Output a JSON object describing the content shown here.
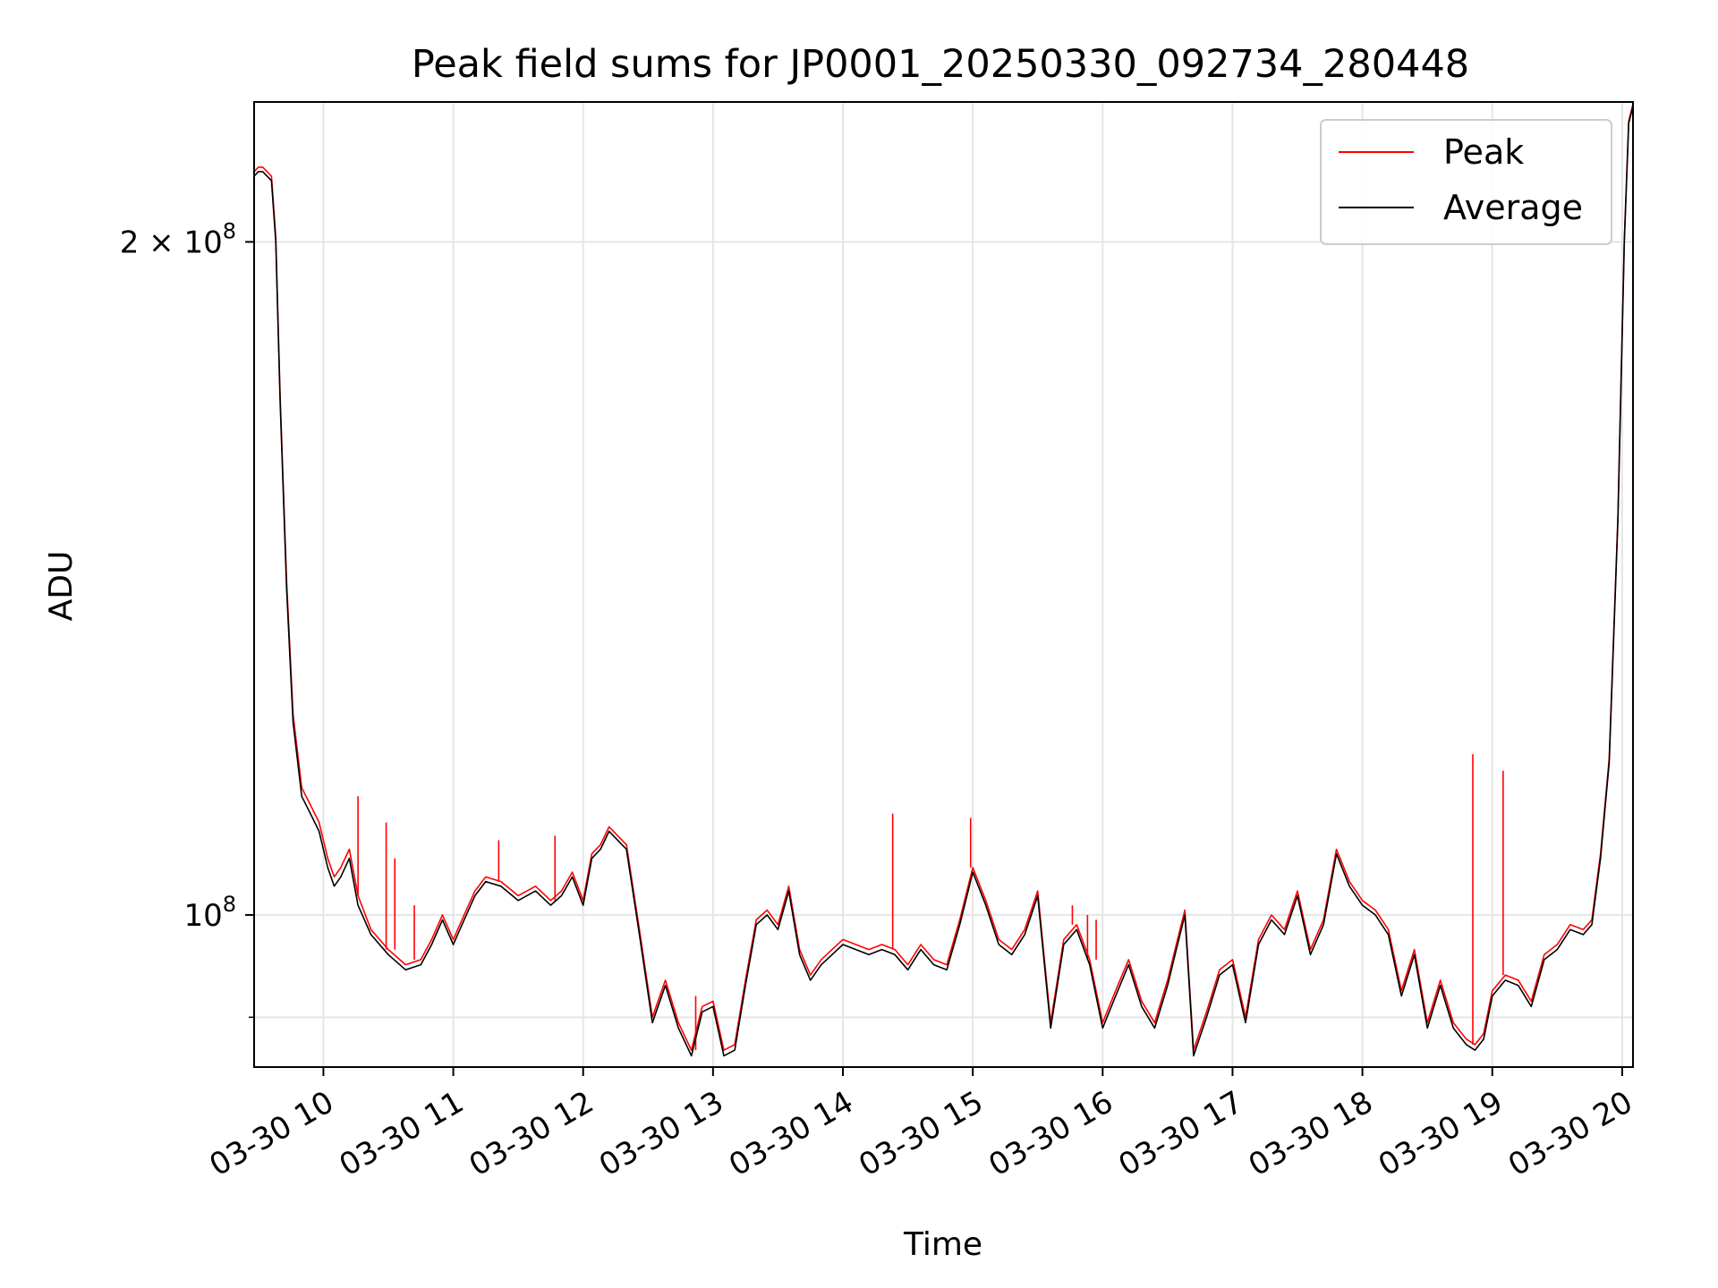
{
  "chart_data": {
    "type": "line",
    "title": "Peak field sums for JP0001_20250330_092734_280448",
    "xlabel": "Time",
    "ylabel": "ADU",
    "x_type": "datetime",
    "xlim": [
      "2025-03-30T09:28:00",
      "2025-03-30T20:05:00"
    ],
    "ylim": [
      85500000,
      231000000
    ],
    "y_scale": "log",
    "grid": true,
    "legend_position": "top-right",
    "x_ticks": [
      {
        "value": "2025-03-30T10:00:00",
        "label": "03-30 10"
      },
      {
        "value": "2025-03-30T11:00:00",
        "label": "03-30 11"
      },
      {
        "value": "2025-03-30T12:00:00",
        "label": "03-30 12"
      },
      {
        "value": "2025-03-30T13:00:00",
        "label": "03-30 13"
      },
      {
        "value": "2025-03-30T14:00:00",
        "label": "03-30 14"
      },
      {
        "value": "2025-03-30T15:00:00",
        "label": "03-30 15"
      },
      {
        "value": "2025-03-30T16:00:00",
        "label": "03-30 16"
      },
      {
        "value": "2025-03-30T17:00:00",
        "label": "03-30 17"
      },
      {
        "value": "2025-03-30T18:00:00",
        "label": "03-30 18"
      },
      {
        "value": "2025-03-30T19:00:00",
        "label": "03-30 19"
      },
      {
        "value": "2025-03-30T20:00:00",
        "label": "03-30 20"
      }
    ],
    "y_ticks": [
      {
        "value": 100000000,
        "base": "10",
        "exp": "8",
        "coef": ""
      },
      {
        "value": 200000000,
        "base": "10",
        "exp": "8",
        "coef": "2 × "
      }
    ],
    "y_minor_gridlines": [
      90000000
    ],
    "series": [
      {
        "name": "Average",
        "color": "#000000",
        "x": [
          "2025-03-30T09:28:00",
          "2025-03-30T09:30:00",
          "2025-03-30T09:32:00",
          "2025-03-30T09:36:00",
          "2025-03-30T09:38:00",
          "2025-03-30T09:40:00",
          "2025-03-30T09:43:00",
          "2025-03-30T09:46:00",
          "2025-03-30T09:50:00",
          "2025-03-30T09:54:00",
          "2025-03-30T09:58:00",
          "2025-03-30T10:02:00",
          "2025-03-30T10:05:00",
          "2025-03-30T10:08:00",
          "2025-03-30T10:12:00",
          "2025-03-30T10:16:00",
          "2025-03-30T10:22:00",
          "2025-03-30T10:30:00",
          "2025-03-30T10:38:00",
          "2025-03-30T10:45:00",
          "2025-03-30T10:50:00",
          "2025-03-30T10:55:00",
          "2025-03-30T11:00:00",
          "2025-03-30T11:05:00",
          "2025-03-30T11:10:00",
          "2025-03-30T11:15:00",
          "2025-03-30T11:22:00",
          "2025-03-30T11:30:00",
          "2025-03-30T11:38:00",
          "2025-03-30T11:45:00",
          "2025-03-30T11:50:00",
          "2025-03-30T11:55:00",
          "2025-03-30T12:00:00",
          "2025-03-30T12:04:00",
          "2025-03-30T12:08:00",
          "2025-03-30T12:12:00",
          "2025-03-30T12:16:00",
          "2025-03-30T12:20:00",
          "2025-03-30T12:26:00",
          "2025-03-30T12:32:00",
          "2025-03-30T12:38:00",
          "2025-03-30T12:44:00",
          "2025-03-30T12:50:00",
          "2025-03-30T12:55:00",
          "2025-03-30T13:00:00",
          "2025-03-30T13:05:00",
          "2025-03-30T13:10:00",
          "2025-03-30T13:15:00",
          "2025-03-30T13:20:00",
          "2025-03-30T13:25:00",
          "2025-03-30T13:30:00",
          "2025-03-30T13:35:00",
          "2025-03-30T13:40:00",
          "2025-03-30T13:45:00",
          "2025-03-30T13:50:00",
          "2025-03-30T13:55:00",
          "2025-03-30T14:00:00",
          "2025-03-30T14:06:00",
          "2025-03-30T14:12:00",
          "2025-03-30T14:18:00",
          "2025-03-30T14:24:00",
          "2025-03-30T14:30:00",
          "2025-03-30T14:36:00",
          "2025-03-30T14:42:00",
          "2025-03-30T14:48:00",
          "2025-03-30T14:54:00",
          "2025-03-30T15:00:00",
          "2025-03-30T15:06:00",
          "2025-03-30T15:12:00",
          "2025-03-30T15:18:00",
          "2025-03-30T15:24:00",
          "2025-03-30T15:30:00",
          "2025-03-30T15:36:00",
          "2025-03-30T15:42:00",
          "2025-03-30T15:48:00",
          "2025-03-30T15:54:00",
          "2025-03-30T16:00:00",
          "2025-03-30T16:06:00",
          "2025-03-30T16:12:00",
          "2025-03-30T16:18:00",
          "2025-03-30T16:24:00",
          "2025-03-30T16:30:00",
          "2025-03-30T16:34:00",
          "2025-03-30T16:38:00",
          "2025-03-30T16:42:00",
          "2025-03-30T16:48:00",
          "2025-03-30T16:54:00",
          "2025-03-30T17:00:00",
          "2025-03-30T17:06:00",
          "2025-03-30T17:12:00",
          "2025-03-30T17:18:00",
          "2025-03-30T17:24:00",
          "2025-03-30T17:30:00",
          "2025-03-30T17:36:00",
          "2025-03-30T17:42:00",
          "2025-03-30T17:48:00",
          "2025-03-30T17:54:00",
          "2025-03-30T18:00:00",
          "2025-03-30T18:06:00",
          "2025-03-30T18:12:00",
          "2025-03-30T18:18:00",
          "2025-03-30T18:24:00",
          "2025-03-30T18:30:00",
          "2025-03-30T18:36:00",
          "2025-03-30T18:42:00",
          "2025-03-30T18:48:00",
          "2025-03-30T18:52:00",
          "2025-03-30T18:56:00",
          "2025-03-30T19:00:00",
          "2025-03-30T19:06:00",
          "2025-03-30T19:12:00",
          "2025-03-30T19:18:00",
          "2025-03-30T19:24:00",
          "2025-03-30T19:30:00",
          "2025-03-30T19:36:00",
          "2025-03-30T19:42:00",
          "2025-03-30T19:46:00",
          "2025-03-30T19:50:00",
          "2025-03-30T19:54:00",
          "2025-03-30T19:58:00",
          "2025-03-30T20:01:00",
          "2025-03-30T20:03:00",
          "2025-03-30T20:05:00"
        ],
        "y": [
          214000000,
          215000000,
          215000000,
          213000000,
          200000000,
          170000000,
          140000000,
          122000000,
          113000000,
          111000000,
          109000000,
          105000000,
          103000000,
          104000000,
          106000000,
          101000000,
          98000000,
          96000000,
          94500000,
          95000000,
          97000000,
          99500000,
          97000000,
          99500000,
          102000000,
          103500000,
          103000000,
          101500000,
          102500000,
          101000000,
          102000000,
          104000000,
          101000000,
          106000000,
          107000000,
          109000000,
          108000000,
          107000000,
          98000000,
          89500000,
          93000000,
          89000000,
          86500000,
          90500000,
          91000000,
          86500000,
          87000000,
          93000000,
          99000000,
          100000000,
          98500000,
          102500000,
          96000000,
          93500000,
          95000000,
          96000000,
          97000000,
          96500000,
          96000000,
          96500000,
          96000000,
          94500000,
          96500000,
          95000000,
          94500000,
          99000000,
          104500000,
          101000000,
          97000000,
          96000000,
          98000000,
          102000000,
          89000000,
          97000000,
          98500000,
          95000000,
          89000000,
          92000000,
          95000000,
          91000000,
          89000000,
          93000000,
          96500000,
          100000000,
          86500000,
          90000000,
          94000000,
          95000000,
          89500000,
          97000000,
          99500000,
          98000000,
          102000000,
          96000000,
          99000000,
          106500000,
          103000000,
          101000000,
          100000000,
          98000000,
          92000000,
          96000000,
          89000000,
          93000000,
          89000000,
          87500000,
          87000000,
          88000000,
          92000000,
          93500000,
          93000000,
          91000000,
          95500000,
          96500000,
          98500000,
          98000000,
          99000000,
          106000000,
          117000000,
          150000000,
          200000000,
          226000000,
          230000000
        ]
      },
      {
        "name": "Peak",
        "color": "#ff0000",
        "x": [
          "2025-03-30T09:28:00",
          "2025-03-30T09:30:00",
          "2025-03-30T09:32:00",
          "2025-03-30T09:36:00",
          "2025-03-30T09:38:00",
          "2025-03-30T09:40:00",
          "2025-03-30T09:43:00",
          "2025-03-30T09:46:00",
          "2025-03-30T09:50:00",
          "2025-03-30T09:54:00",
          "2025-03-30T09:58:00",
          "2025-03-30T10:02:00",
          "2025-03-30T10:05:00",
          "2025-03-30T10:08:00",
          "2025-03-30T10:12:00",
          "2025-03-30T10:16:00",
          "2025-03-30T10:22:00",
          "2025-03-30T10:30:00",
          "2025-03-30T10:38:00",
          "2025-03-30T10:45:00",
          "2025-03-30T10:50:00",
          "2025-03-30T10:55:00",
          "2025-03-30T11:00:00",
          "2025-03-30T11:05:00",
          "2025-03-30T11:10:00",
          "2025-03-30T11:15:00",
          "2025-03-30T11:22:00",
          "2025-03-30T11:30:00",
          "2025-03-30T11:38:00",
          "2025-03-30T11:45:00",
          "2025-03-30T11:50:00",
          "2025-03-30T11:55:00",
          "2025-03-30T12:00:00",
          "2025-03-30T12:04:00",
          "2025-03-30T12:08:00",
          "2025-03-30T12:12:00",
          "2025-03-30T12:16:00",
          "2025-03-30T12:20:00",
          "2025-03-30T12:26:00",
          "2025-03-30T12:32:00",
          "2025-03-30T12:38:00",
          "2025-03-30T12:44:00",
          "2025-03-30T12:50:00",
          "2025-03-30T12:55:00",
          "2025-03-30T13:00:00",
          "2025-03-30T13:05:00",
          "2025-03-30T13:10:00",
          "2025-03-30T13:15:00",
          "2025-03-30T13:20:00",
          "2025-03-30T13:25:00",
          "2025-03-30T13:30:00",
          "2025-03-30T13:35:00",
          "2025-03-30T13:40:00",
          "2025-03-30T13:45:00",
          "2025-03-30T13:50:00",
          "2025-03-30T13:55:00",
          "2025-03-30T14:00:00",
          "2025-03-30T14:06:00",
          "2025-03-30T14:12:00",
          "2025-03-30T14:18:00",
          "2025-03-30T14:24:00",
          "2025-03-30T14:30:00",
          "2025-03-30T14:36:00",
          "2025-03-30T14:42:00",
          "2025-03-30T14:48:00",
          "2025-03-30T14:54:00",
          "2025-03-30T15:00:00",
          "2025-03-30T15:06:00",
          "2025-03-30T15:12:00",
          "2025-03-30T15:18:00",
          "2025-03-30T15:24:00",
          "2025-03-30T15:30:00",
          "2025-03-30T15:36:00",
          "2025-03-30T15:42:00",
          "2025-03-30T15:48:00",
          "2025-03-30T15:54:00",
          "2025-03-30T16:00:00",
          "2025-03-30T16:06:00",
          "2025-03-30T16:12:00",
          "2025-03-30T16:18:00",
          "2025-03-30T16:24:00",
          "2025-03-30T16:30:00",
          "2025-03-30T16:34:00",
          "2025-03-30T16:38:00",
          "2025-03-30T16:42:00",
          "2025-03-30T16:48:00",
          "2025-03-30T16:54:00",
          "2025-03-30T17:00:00",
          "2025-03-30T17:06:00",
          "2025-03-30T17:12:00",
          "2025-03-30T17:18:00",
          "2025-03-30T17:24:00",
          "2025-03-30T17:30:00",
          "2025-03-30T17:36:00",
          "2025-03-30T17:42:00",
          "2025-03-30T17:48:00",
          "2025-03-30T17:54:00",
          "2025-03-30T18:00:00",
          "2025-03-30T18:06:00",
          "2025-03-30T18:12:00",
          "2025-03-30T18:18:00",
          "2025-03-30T18:24:00",
          "2025-03-30T18:30:00",
          "2025-03-30T18:36:00",
          "2025-03-30T18:42:00",
          "2025-03-30T18:48:00",
          "2025-03-30T18:52:00",
          "2025-03-30T18:56:00",
          "2025-03-30T19:00:00",
          "2025-03-30T19:06:00",
          "2025-03-30T19:12:00",
          "2025-03-30T19:18:00",
          "2025-03-30T19:24:00",
          "2025-03-30T19:30:00",
          "2025-03-30T19:36:00",
          "2025-03-30T19:42:00",
          "2025-03-30T19:46:00",
          "2025-03-30T19:50:00",
          "2025-03-30T19:54:00",
          "2025-03-30T19:58:00",
          "2025-03-30T20:01:00",
          "2025-03-30T20:03:00",
          "2025-03-30T20:05:00"
        ],
        "y": [
          215000000,
          216000000,
          216000000,
          214000000,
          201000000,
          171000000,
          141000000,
          123000000,
          114000000,
          112000000,
          110000000,
          106000000,
          104000000,
          105000000,
          107000000,
          102000000,
          98500000,
          96500000,
          95000000,
          95500000,
          97500000,
          100000000,
          97500000,
          100000000,
          102500000,
          104000000,
          103500000,
          102000000,
          103000000,
          101500000,
          102500000,
          104500000,
          101500000,
          106500000,
          107500000,
          109500000,
          108500000,
          107500000,
          98500000,
          90000000,
          93500000,
          89500000,
          87000000,
          91000000,
          91500000,
          87000000,
          87500000,
          93500000,
          99500000,
          100500000,
          99000000,
          103000000,
          96500000,
          94000000,
          95500000,
          96500000,
          97500000,
          97000000,
          96500000,
          97000000,
          96500000,
          95000000,
          97000000,
          95500000,
          95000000,
          99500000,
          105000000,
          101500000,
          97500000,
          96500000,
          98500000,
          102500000,
          89500000,
          97500000,
          99000000,
          95500000,
          89500000,
          92500000,
          95500000,
          91500000,
          89500000,
          93500000,
          97000000,
          100500000,
          87000000,
          90500000,
          94500000,
          95500000,
          90000000,
          97500000,
          100000000,
          98500000,
          102500000,
          96500000,
          99500000,
          107000000,
          103500000,
          101500000,
          100500000,
          98500000,
          92500000,
          96500000,
          89500000,
          93500000,
          89500000,
          88000000,
          87500000,
          88500000,
          92500000,
          94000000,
          93500000,
          91500000,
          96000000,
          97000000,
          99000000,
          98500000,
          99500000,
          106500000,
          117500000,
          150500000,
          200500000,
          226500000,
          230500000
        ],
        "spikes": [
          {
            "x": "2025-03-30T10:16:00",
            "y": 113000000
          },
          {
            "x": "2025-03-30T10:29:00",
            "y": 110000000
          },
          {
            "x": "2025-03-30T10:33:00",
            "y": 106000000
          },
          {
            "x": "2025-03-30T10:42:00",
            "y": 101000000
          },
          {
            "x": "2025-03-30T11:21:00",
            "y": 108000000
          },
          {
            "x": "2025-03-30T11:47:00",
            "y": 108500000
          },
          {
            "x": "2025-03-30T12:52:00",
            "y": 92000000
          },
          {
            "x": "2025-03-30T13:37:00",
            "y": 103000000
          },
          {
            "x": "2025-03-30T14:23:00",
            "y": 111000000
          },
          {
            "x": "2025-03-30T14:59:00",
            "y": 110500000
          },
          {
            "x": "2025-03-30T15:46:00",
            "y": 101000000
          },
          {
            "x": "2025-03-30T15:53:00",
            "y": 100000000
          },
          {
            "x": "2025-03-30T15:57:00",
            "y": 99500000
          },
          {
            "x": "2025-03-30T18:51:00",
            "y": 118000000
          },
          {
            "x": "2025-03-30T19:05:00",
            "y": 116000000
          }
        ]
      }
    ]
  }
}
